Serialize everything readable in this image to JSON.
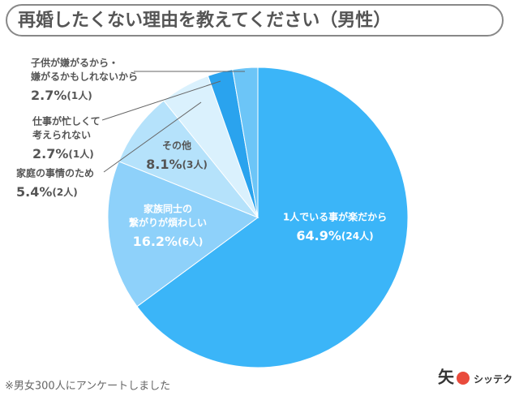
{
  "chart_data": {
    "type": "pie",
    "title": "再婚したくない理由を教えてください（男性）",
    "categories": [
      [
        "1人でいる事が楽だから"
      ],
      [
        "家族同士の",
        "繋がりが煩わしい"
      ],
      [
        "その他"
      ],
      [
        "家庭の事情のため"
      ],
      [
        "仕事が忙しくて",
        "考えられない"
      ],
      [
        "子供が嫌がるから・",
        "嫌がるかもしれないから"
      ]
    ],
    "values": [
      64.9,
      16.2,
      8.1,
      5.4,
      2.7,
      2.7
    ],
    "value_labels": [
      "64.9%",
      "16.2%",
      "8.1%",
      "5.4%",
      "2.7%",
      "2.7%"
    ],
    "count_labels": [
      "(24人)",
      "(6人)",
      "(3人)",
      "(2人)",
      "(1人)",
      "(1人)"
    ],
    "colors": [
      "#3bb5f8",
      "#8ed1fa",
      "#b5e2fb",
      "#daf1fd",
      "#2aa3ee",
      "#6cc5f7"
    ],
    "footnote": "※男女300人にアンケートしました",
    "logo": "シッテク"
  }
}
